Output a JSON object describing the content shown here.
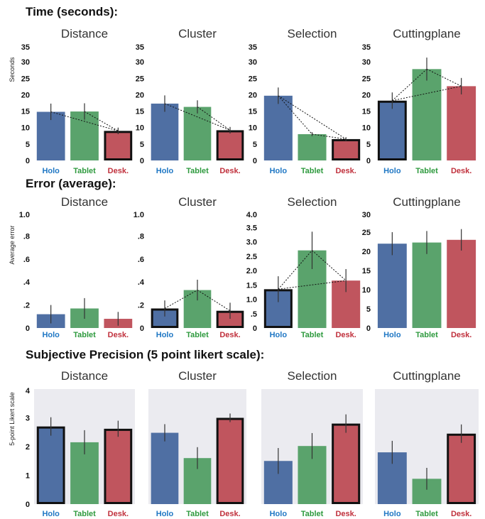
{
  "colors": {
    "holo": "#4f6fa3",
    "tablet": "#5aa36c",
    "desk": "#c0555e",
    "panel_bg": "#ebebf0",
    "holo_label": "#1f77c4",
    "tablet_label": "#2e9a3e",
    "desk_label": "#c0303c"
  },
  "sections": [
    {
      "title": "Time (seconds):",
      "ylabel": "Seconds"
    },
    {
      "title": "Error (average):",
      "ylabel": "Average error"
    },
    {
      "title": "Subjective Precision (5 point likert scale):",
      "ylabel": "5-point Likert scale"
    }
  ],
  "chart_data": [
    {
      "type": "bar",
      "section": 0,
      "title": "Distance",
      "categories": [
        "Holo",
        "Tablet",
        "Desk."
      ],
      "values": [
        14.8,
        14.9,
        9.0
      ],
      "errors": [
        2.5,
        2.5,
        1.0
      ],
      "ylim": [
        0,
        35
      ],
      "yticks": [
        0,
        5,
        10,
        15,
        20,
        25,
        30,
        35
      ],
      "ytick_labels": [
        "0",
        "5",
        "10",
        "15",
        "20",
        "25",
        "30",
        "35"
      ],
      "highlight": [
        false,
        false,
        true
      ],
      "dashed_links": [
        [
          0,
          2
        ],
        [
          1,
          2
        ]
      ]
    },
    {
      "type": "bar",
      "section": 0,
      "title": "Cluster",
      "categories": [
        "Holo",
        "Tablet",
        "Desk."
      ],
      "values": [
        17.3,
        16.3,
        9.2
      ],
      "errors": [
        2.5,
        2.0,
        1.0
      ],
      "ylim": [
        0,
        35
      ],
      "yticks": [
        0,
        5,
        10,
        15,
        20,
        25,
        30,
        35
      ],
      "ytick_labels": [
        "0",
        "5",
        "10",
        "15",
        "20",
        "25",
        "30",
        "35"
      ],
      "highlight": [
        false,
        false,
        true
      ],
      "dashed_links": [
        [
          0,
          2
        ],
        [
          1,
          2
        ]
      ]
    },
    {
      "type": "bar",
      "section": 0,
      "title": "Selection",
      "categories": [
        "Holo",
        "Tablet",
        "Desk."
      ],
      "values": [
        19.7,
        8.0,
        6.5
      ],
      "errors": [
        2.5,
        0.6,
        0.6
      ],
      "ylim": [
        0,
        35
      ],
      "yticks": [
        0,
        5,
        10,
        15,
        20,
        25,
        30,
        35
      ],
      "ytick_labels": [
        "0",
        "5",
        "10",
        "15",
        "20",
        "25",
        "30",
        "35"
      ],
      "highlight": [
        false,
        false,
        true
      ],
      "dashed_links": [
        [
          0,
          1
        ],
        [
          0,
          2
        ],
        [
          1,
          2
        ]
      ]
    },
    {
      "type": "bar",
      "section": 0,
      "title": "Cuttingplane",
      "categories": [
        "Holo",
        "Tablet",
        "Desk."
      ],
      "values": [
        18.2,
        27.8,
        22.6
      ],
      "errors": [
        2.5,
        3.5,
        2.5
      ],
      "ylim": [
        0,
        35
      ],
      "yticks": [
        0,
        5,
        10,
        15,
        20,
        25,
        30,
        35
      ],
      "ytick_labels": [
        "0",
        "5",
        "10",
        "15",
        "20",
        "25",
        "30",
        "35"
      ],
      "highlight": [
        true,
        false,
        false
      ],
      "dashed_links": [
        [
          0,
          1
        ],
        [
          0,
          2
        ],
        [
          1,
          2
        ]
      ]
    },
    {
      "type": "bar",
      "section": 1,
      "title": "Distance",
      "categories": [
        "Holo",
        "Tablet",
        "Desk."
      ],
      "values": [
        0.12,
        0.17,
        0.08
      ],
      "errors": [
        0.08,
        0.09,
        0.06
      ],
      "ylim": [
        0,
        1.0
      ],
      "yticks": [
        0,
        0.2,
        0.4,
        0.6,
        0.8,
        1.0
      ],
      "ytick_labels": [
        "0",
        ".2",
        ".4",
        ".6",
        ".8",
        "1.0"
      ],
      "highlight": [
        false,
        false,
        false
      ],
      "dashed_links": []
    },
    {
      "type": "bar",
      "section": 1,
      "title": "Cluster",
      "categories": [
        "Holo",
        "Tablet",
        "Desk."
      ],
      "values": [
        0.17,
        0.33,
        0.15
      ],
      "errors": [
        0.07,
        0.09,
        0.07
      ],
      "ylim": [
        0,
        1.0
      ],
      "yticks": [
        0,
        0.2,
        0.4,
        0.6,
        0.8,
        1.0
      ],
      "ytick_labels": [
        "0",
        ".2",
        ".4",
        ".6",
        ".8",
        "1.0"
      ],
      "highlight": [
        true,
        false,
        true
      ],
      "dashed_links": [
        [
          0,
          1
        ],
        [
          1,
          2
        ]
      ]
    },
    {
      "type": "bar",
      "section": 1,
      "title": "Selection",
      "categories": [
        "Holo",
        "Tablet",
        "Desk."
      ],
      "values": [
        1.35,
        2.7,
        1.65
      ],
      "errors": [
        0.45,
        0.65,
        0.4
      ],
      "ylim": [
        0,
        4.0
      ],
      "yticks": [
        0,
        0.5,
        1.0,
        1.5,
        2.0,
        2.5,
        3.0,
        3.5,
        4.0
      ],
      "ytick_labels": [
        "0",
        ".5",
        "1.0",
        "1.5",
        "2.0",
        "2.5",
        "3.0",
        "3.5",
        "4.0"
      ],
      "highlight": [
        true,
        false,
        false
      ],
      "dashed_links": [
        [
          0,
          1
        ],
        [
          0,
          2
        ],
        [
          1,
          2
        ]
      ]
    },
    {
      "type": "bar",
      "section": 1,
      "title": "Cuttingplane",
      "categories": [
        "Holo",
        "Tablet",
        "Desk."
      ],
      "values": [
        22.0,
        22.3,
        23.0
      ],
      "errors": [
        3.0,
        3.0,
        2.8
      ],
      "ylim": [
        0,
        30
      ],
      "yticks": [
        0,
        5,
        10,
        15,
        20,
        25,
        30
      ],
      "ytick_labels": [
        "0",
        "5",
        "10",
        "15",
        "20",
        "25",
        "30"
      ],
      "highlight": [
        false,
        false,
        false
      ],
      "dashed_links": []
    },
    {
      "type": "bar",
      "section": 2,
      "title": "Distance",
      "categories": [
        "Holo",
        "Tablet",
        "Desk."
      ],
      "values": [
        2.7,
        2.15,
        2.62
      ],
      "errors": [
        0.32,
        0.42,
        0.28
      ],
      "ylim": [
        0,
        4
      ],
      "yticks": [
        0,
        1,
        2,
        3,
        4
      ],
      "ytick_labels": [
        "0",
        "1",
        "2",
        "3",
        "4"
      ],
      "highlight": [
        true,
        false,
        true
      ],
      "dashed_links": []
    },
    {
      "type": "bar",
      "section": 2,
      "title": "Cluster",
      "categories": [
        "Holo",
        "Tablet",
        "Desk."
      ],
      "values": [
        2.48,
        1.6,
        3.0
      ],
      "errors": [
        0.3,
        0.38,
        0.15
      ],
      "ylim": [
        0,
        4
      ],
      "yticks": [],
      "ytick_labels": [],
      "highlight": [
        false,
        false,
        true
      ],
      "dashed_links": []
    },
    {
      "type": "bar",
      "section": 2,
      "title": "Selection",
      "categories": [
        "Holo",
        "Tablet",
        "Desk."
      ],
      "values": [
        1.5,
        2.02,
        2.8
      ],
      "errors": [
        0.45,
        0.45,
        0.32
      ],
      "ylim": [
        0,
        4
      ],
      "yticks": [],
      "ytick_labels": [],
      "highlight": [
        false,
        false,
        true
      ],
      "dashed_links": []
    },
    {
      "type": "bar",
      "section": 2,
      "title": "Cuttingplane",
      "categories": [
        "Holo",
        "Tablet",
        "Desk."
      ],
      "values": [
        1.8,
        0.88,
        2.45
      ],
      "errors": [
        0.4,
        0.38,
        0.32
      ],
      "ylim": [
        0,
        4
      ],
      "yticks": [],
      "ytick_labels": [],
      "highlight": [
        false,
        false,
        true
      ],
      "dashed_links": []
    }
  ]
}
